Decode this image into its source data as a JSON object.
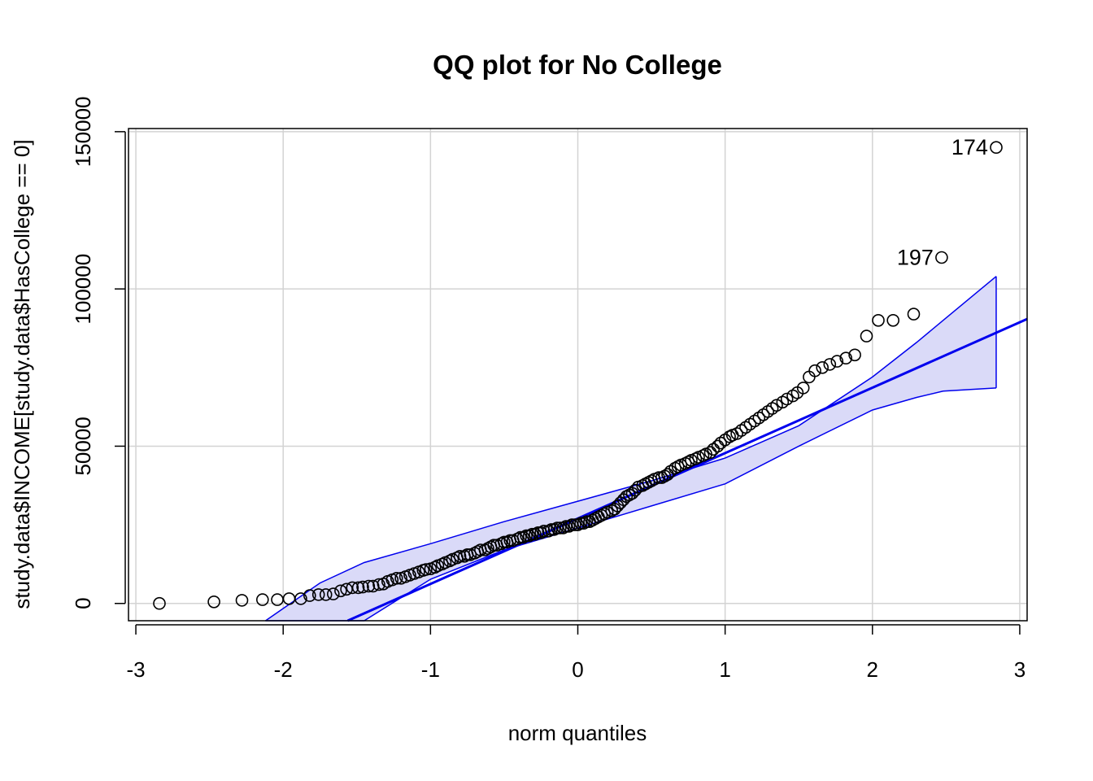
{
  "chart_data": {
    "type": "scatter",
    "title": "QQ plot for No College",
    "xlabel": "norm quantiles",
    "ylabel": "study.data$INCOME[study.data$HasCollege == 0]",
    "xlim": [
      -3.05,
      3.05
    ],
    "ylim": [
      -5500,
      151000
    ],
    "x_ticks": [
      "-3",
      "-2",
      "-1",
      "0",
      "1",
      "2",
      "3"
    ],
    "y_ticks": [
      "0",
      "50000",
      "100000",
      "150000"
    ],
    "x_tick_values": [
      -3,
      -2,
      -1,
      0,
      1,
      2,
      3
    ],
    "y_tick_values": [
      0,
      50000,
      100000,
      150000
    ],
    "grid": true,
    "colors": {
      "line": "#0000ee",
      "band_fill": "#dadaf8",
      "points": "#000000",
      "grid": "#d3d3d3"
    },
    "reference_line": {
      "intercept": 27000,
      "slope": 20800
    },
    "envelope": {
      "x": [
        -2.12,
        -1.75,
        -1.45,
        -1.0,
        -0.5,
        0.0,
        0.5,
        1.0,
        1.5,
        2.0,
        2.3,
        2.48,
        2.84
      ],
      "upper": [
        -5500,
        6500,
        13000,
        19000,
        26000,
        32500,
        39000,
        46200,
        56500,
        72000,
        83000,
        90000,
        104000
      ],
      "lower": [
        -5500,
        -5500,
        -5500,
        7700,
        17000,
        24000,
        31000,
        38000,
        50000,
        61500,
        65500,
        67500,
        68500
      ]
    },
    "points": [
      [
        -2.84,
        0
      ],
      [
        -2.47,
        500
      ],
      [
        -2.28,
        1000
      ],
      [
        -2.14,
        1200
      ],
      [
        -2.04,
        1200
      ],
      [
        -1.96,
        1500
      ],
      [
        -1.88,
        1500
      ],
      [
        -1.82,
        2500
      ],
      [
        -1.76,
        2800
      ],
      [
        -1.71,
        2800
      ],
      [
        -1.66,
        3000
      ],
      [
        -1.61,
        4000
      ],
      [
        -1.57,
        4500
      ],
      [
        -1.53,
        5000
      ],
      [
        -1.49,
        5000
      ],
      [
        -1.46,
        5200
      ],
      [
        -1.42,
        5500
      ],
      [
        -1.39,
        5500
      ],
      [
        -1.35,
        6000
      ],
      [
        -1.32,
        6200
      ],
      [
        -1.29,
        7000
      ],
      [
        -1.26,
        7500
      ],
      [
        -1.23,
        8000
      ],
      [
        -1.2,
        8000
      ],
      [
        -1.17,
        8500
      ],
      [
        -1.14,
        9000
      ],
      [
        -1.11,
        9500
      ],
      [
        -1.08,
        10000
      ],
      [
        -1.05,
        10500
      ],
      [
        -1.03,
        10800
      ],
      [
        -1.0,
        11000
      ],
      [
        -0.97,
        11500
      ],
      [
        -0.95,
        12000
      ],
      [
        -0.92,
        12500
      ],
      [
        -0.9,
        13000
      ],
      [
        -0.87,
        13500
      ],
      [
        -0.85,
        14000
      ],
      [
        -0.82,
        14500
      ],
      [
        -0.8,
        15000
      ],
      [
        -0.77,
        15000
      ],
      [
        -0.75,
        15500
      ],
      [
        -0.73,
        15500
      ],
      [
        -0.7,
        16000
      ],
      [
        -0.68,
        16500
      ],
      [
        -0.66,
        17000
      ],
      [
        -0.63,
        17000
      ],
      [
        -0.61,
        17500
      ],
      [
        -0.59,
        18000
      ],
      [
        -0.57,
        18500
      ],
      [
        -0.55,
        18500
      ],
      [
        -0.52,
        19000
      ],
      [
        -0.5,
        19500
      ],
      [
        -0.48,
        19500
      ],
      [
        -0.46,
        20000
      ],
      [
        -0.44,
        20000
      ],
      [
        -0.41,
        20500
      ],
      [
        -0.39,
        21000
      ],
      [
        -0.37,
        21000
      ],
      [
        -0.35,
        21500
      ],
      [
        -0.33,
        21500
      ],
      [
        -0.31,
        22000
      ],
      [
        -0.29,
        22000
      ],
      [
        -0.27,
        22500
      ],
      [
        -0.25,
        22500
      ],
      [
        -0.23,
        23000
      ],
      [
        -0.2,
        23000
      ],
      [
        -0.18,
        23500
      ],
      [
        -0.16,
        23500
      ],
      [
        -0.14,
        24000
      ],
      [
        -0.12,
        24000
      ],
      [
        -0.1,
        24000
      ],
      [
        -0.08,
        24500
      ],
      [
        -0.06,
        24500
      ],
      [
        -0.04,
        25000
      ],
      [
        -0.02,
        25000
      ],
      [
        0.0,
        25000
      ],
      [
        0.02,
        25500
      ],
      [
        0.04,
        25500
      ],
      [
        0.06,
        26000
      ],
      [
        0.08,
        26000
      ],
      [
        0.1,
        26500
      ],
      [
        0.12,
        27000
      ],
      [
        0.14,
        27500
      ],
      [
        0.16,
        28000
      ],
      [
        0.18,
        28500
      ],
      [
        0.2,
        29000
      ],
      [
        0.23,
        29500
      ],
      [
        0.25,
        30000
      ],
      [
        0.27,
        31000
      ],
      [
        0.29,
        32000
      ],
      [
        0.31,
        33000
      ],
      [
        0.33,
        34000
      ],
      [
        0.35,
        34500
      ],
      [
        0.37,
        35000
      ],
      [
        0.39,
        36000
      ],
      [
        0.41,
        37000
      ],
      [
        0.44,
        37500
      ],
      [
        0.46,
        38000
      ],
      [
        0.48,
        38500
      ],
      [
        0.5,
        39000
      ],
      [
        0.52,
        39500
      ],
      [
        0.55,
        40000
      ],
      [
        0.57,
        40000
      ],
      [
        0.59,
        40500
      ],
      [
        0.61,
        41000
      ],
      [
        0.63,
        42000
      ],
      [
        0.66,
        43000
      ],
      [
        0.68,
        43500
      ],
      [
        0.7,
        44000
      ],
      [
        0.73,
        44500
      ],
      [
        0.75,
        45000
      ],
      [
        0.77,
        45500
      ],
      [
        0.8,
        46000
      ],
      [
        0.82,
        46500
      ],
      [
        0.85,
        47000
      ],
      [
        0.87,
        47500
      ],
      [
        0.9,
        48000
      ],
      [
        0.92,
        49000
      ],
      [
        0.95,
        50000
      ],
      [
        0.97,
        51000
      ],
      [
        1.0,
        52000
      ],
      [
        1.03,
        53000
      ],
      [
        1.05,
        53500
      ],
      [
        1.08,
        54000
      ],
      [
        1.11,
        55000
      ],
      [
        1.14,
        56000
      ],
      [
        1.17,
        57000
      ],
      [
        1.2,
        58000
      ],
      [
        1.23,
        59000
      ],
      [
        1.26,
        60000
      ],
      [
        1.29,
        61000
      ],
      [
        1.32,
        62000
      ],
      [
        1.35,
        63000
      ],
      [
        1.39,
        64000
      ],
      [
        1.42,
        65000
      ],
      [
        1.46,
        66000
      ],
      [
        1.49,
        67000
      ],
      [
        1.53,
        68500
      ],
      [
        1.57,
        72000
      ],
      [
        1.61,
        74000
      ],
      [
        1.66,
        75000
      ],
      [
        1.71,
        76000
      ],
      [
        1.76,
        77000
      ],
      [
        1.82,
        78000
      ],
      [
        1.88,
        79000
      ],
      [
        1.96,
        85000
      ],
      [
        2.04,
        90000
      ],
      [
        2.14,
        90000
      ],
      [
        2.28,
        92000
      ],
      [
        2.47,
        110000
      ],
      [
        2.84,
        145000
      ]
    ],
    "labeled_points": [
      {
        "label": "174",
        "x": 2.84,
        "y": 145000
      },
      {
        "label": "197",
        "x": 2.47,
        "y": 110000
      }
    ]
  }
}
